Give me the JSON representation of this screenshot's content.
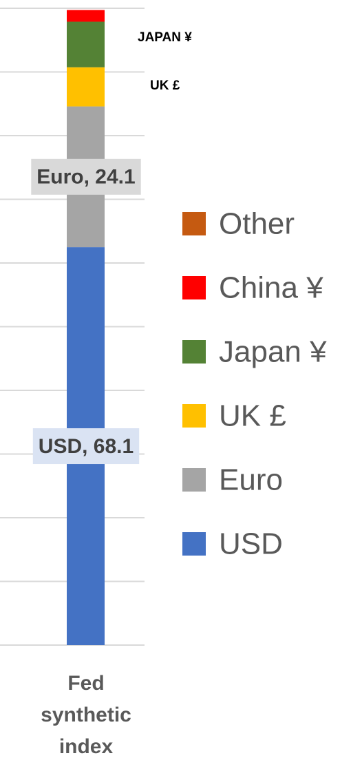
{
  "chart_data": {
    "type": "stacked_bar",
    "categories": [
      "Fed synthetic index"
    ],
    "series": [
      {
        "name": "USD",
        "color": "#4472c4",
        "values": [
          68.1
        ],
        "value_labels": [
          "USD, 68.1"
        ]
      },
      {
        "name": "Euro",
        "color": "#a5a5a5",
        "values": [
          24.1
        ],
        "value_labels": [
          "Euro, 24.1"
        ]
      },
      {
        "name": "UK £",
        "color": "#ffc000",
        "values": [
          6.7
        ]
      },
      {
        "name": "Japan ¥",
        "color": "#548235",
        "values": [
          7.8
        ]
      },
      {
        "name": "China ¥",
        "color": "#ff0000",
        "values": [
          2.0
        ]
      },
      {
        "name": "Other",
        "color": "#c55a11",
        "values": [
          0
        ]
      }
    ],
    "annotations": [
      "JAPAN ¥",
      "UK £"
    ],
    "ylim": [
      0,
      109
    ],
    "yticks": [
      0,
      10.9,
      21.8,
      32.7,
      43.6,
      54.5,
      65.4,
      76.3,
      87.2,
      98.1,
      109
    ],
    "grid": true
  }
}
